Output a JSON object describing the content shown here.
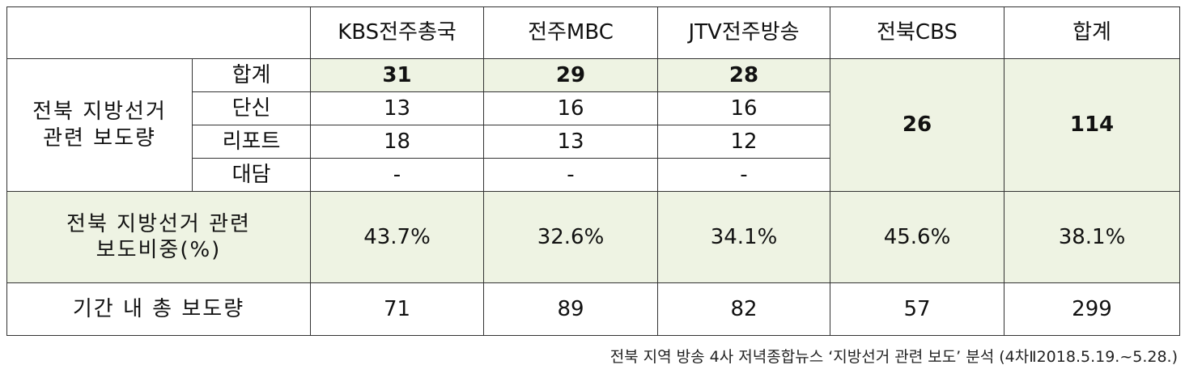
{
  "table": {
    "header": [
      "KBS전주총국",
      "전주MBC",
      "JTV전주방송",
      "전북CBS",
      "합계"
    ],
    "group_label": [
      "전북 지방선거",
      "관련 보도량"
    ],
    "group_rows": [
      {
        "label": "합계",
        "values": [
          "31",
          "29",
          "28"
        ]
      },
      {
        "label": "단신",
        "values": [
          "13",
          "16",
          "16"
        ]
      },
      {
        "label": "리포트",
        "values": [
          "18",
          "13",
          "12"
        ]
      },
      {
        "label": "대담",
        "values": [
          "-",
          "-",
          "-"
        ]
      }
    ],
    "group_totals": [
      "26",
      "114"
    ],
    "share_row": {
      "label": [
        "전북 지방선거 관련",
        "보도비중(%)"
      ],
      "values": [
        "43.7%",
        "32.6%",
        "34.1%",
        "45.6%",
        "38.1%"
      ]
    },
    "total_row": {
      "label": "기간 내 총 보도량",
      "values": [
        "71",
        "89",
        "82",
        "57",
        "299"
      ]
    }
  },
  "caption": "전북 지역 방송 4사 저녁종합뉴스 ‘지방선거 관련 보도’ 분석 (4차Ⅱ2018.5.19.~5.28.)"
}
